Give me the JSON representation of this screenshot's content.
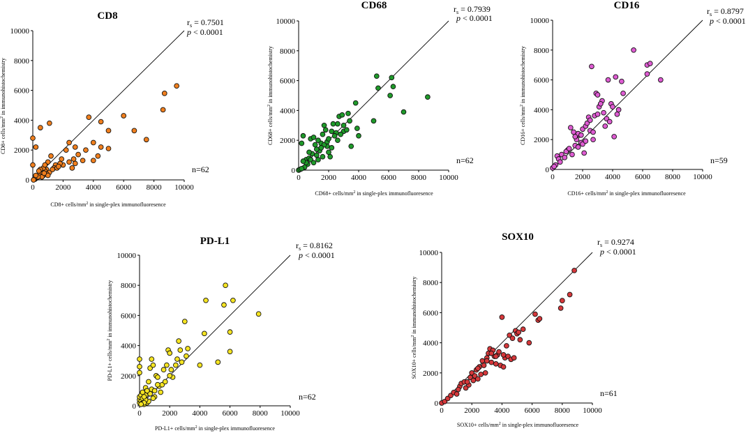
{
  "chart_data": [
    {
      "id": "cd8",
      "type": "scatter",
      "title": "CD8",
      "xlabel_pre": "CD8+ cells/mm",
      "xlabel_post": " in single-plex immunofluoresence",
      "ylabel_pre": "CD8+ cells/mm",
      "ylabel_post": " in immunohistochemistry",
      "xlim": [
        0,
        10000
      ],
      "ylim": [
        0,
        10000
      ],
      "xticks": [
        "0",
        "2000",
        "4000",
        "6000",
        "8000",
        "10000"
      ],
      "yticks": [
        "0",
        "2000",
        "4000",
        "6000",
        "8000",
        "10000"
      ],
      "rs_label": "r",
      "rs_sub": "s",
      "rs_value": " = 0.7501",
      "p_label": "p",
      "p_value": " < 0.0001",
      "n": "n=62",
      "color": "#f07f1e",
      "identity_line": true,
      "points": [
        [
          0,
          1000
        ],
        [
          0,
          2800
        ],
        [
          200,
          2200
        ],
        [
          500,
          3500
        ],
        [
          1100,
          3800
        ],
        [
          3700,
          4200
        ],
        [
          4500,
          3900
        ],
        [
          6000,
          4300
        ],
        [
          5000,
          3300
        ],
        [
          6700,
          3300
        ],
        [
          7500,
          2700
        ],
        [
          8600,
          4700
        ],
        [
          8700,
          5800
        ],
        [
          9500,
          6300
        ],
        [
          4000,
          2500
        ],
        [
          4300,
          1600
        ],
        [
          4000,
          1300
        ],
        [
          4500,
          2200
        ],
        [
          5000,
          2100
        ],
        [
          2800,
          2200
        ],
        [
          2400,
          2500
        ],
        [
          2200,
          2000
        ],
        [
          3000,
          1700
        ],
        [
          3500,
          2000
        ],
        [
          3300,
          1300
        ],
        [
          2700,
          1400
        ],
        [
          2400,
          1200
        ],
        [
          2600,
          800
        ],
        [
          2800,
          1100
        ],
        [
          1900,
          1400
        ],
        [
          2000,
          1000
        ],
        [
          1800,
          1100
        ],
        [
          1500,
          1000
        ],
        [
          1400,
          800
        ],
        [
          1200,
          1600
        ],
        [
          1000,
          1200
        ],
        [
          900,
          700
        ],
        [
          800,
          600
        ],
        [
          700,
          800
        ],
        [
          600,
          500
        ],
        [
          500,
          400
        ],
        [
          400,
          300
        ],
        [
          300,
          200
        ],
        [
          250,
          150
        ],
        [
          200,
          100
        ],
        [
          150,
          50
        ],
        [
          100,
          50
        ],
        [
          50,
          0
        ],
        [
          500,
          700
        ],
        [
          1100,
          500
        ],
        [
          1300,
          700
        ],
        [
          700,
          300
        ],
        [
          900,
          400
        ],
        [
          1000,
          300
        ],
        [
          600,
          200
        ],
        [
          800,
          1000
        ],
        [
          1600,
          800
        ],
        [
          1700,
          900
        ],
        [
          400,
          600
        ],
        [
          350,
          200
        ],
        [
          200,
          300
        ],
        [
          750,
          450
        ]
      ]
    },
    {
      "id": "cd68",
      "type": "scatter",
      "title": "CD68",
      "xlabel_pre": "CD68+ cells/mm",
      "xlabel_post": " in single-plex immunofluoresence",
      "ylabel_pre": "CD68+ cells/mm",
      "ylabel_post": " in immunohistochemistry",
      "xlim": [
        0,
        10000
      ],
      "ylim": [
        0,
        10000
      ],
      "xticks": [
        "0",
        "2000",
        "4000",
        "6000",
        "8000",
        "10000"
      ],
      "yticks": [
        "0",
        "2000",
        "4000",
        "6000",
        "8000",
        "10000"
      ],
      "rs_label": "r",
      "rs_sub": "s",
      "rs_value": " = 0.7939",
      "p_label": "p",
      "p_value": " < 0.0001",
      "n": "n=62",
      "color": "#1f9a2a",
      "identity_line": true,
      "points": [
        [
          0,
          0
        ],
        [
          100,
          50
        ],
        [
          200,
          1800
        ],
        [
          300,
          2300
        ],
        [
          500,
          700
        ],
        [
          600,
          400
        ],
        [
          700,
          800
        ],
        [
          400,
          200
        ],
        [
          800,
          2100
        ],
        [
          1000,
          2200
        ],
        [
          1200,
          1000
        ],
        [
          1300,
          700
        ],
        [
          1500,
          1800
        ],
        [
          1600,
          2400
        ],
        [
          1700,
          3000
        ],
        [
          1800,
          2700
        ],
        [
          1900,
          1600
        ],
        [
          2000,
          1200
        ],
        [
          2100,
          900
        ],
        [
          2200,
          1500
        ],
        [
          2300,
          3100
        ],
        [
          2500,
          2500
        ],
        [
          2700,
          3600
        ],
        [
          2900,
          3700
        ],
        [
          3000,
          2600
        ],
        [
          3300,
          3800
        ],
        [
          3500,
          1600
        ],
        [
          3800,
          4500
        ],
        [
          3900,
          2800
        ],
        [
          4000,
          2300
        ],
        [
          5000,
          3300
        ],
        [
          5200,
          6300
        ],
        [
          5300,
          5500
        ],
        [
          6100,
          5000
        ],
        [
          6200,
          6200
        ],
        [
          6300,
          5600
        ],
        [
          7000,
          3900
        ],
        [
          8600,
          4900
        ],
        [
          2800,
          2400
        ],
        [
          2600,
          2000
        ],
        [
          2400,
          2300
        ],
        [
          1400,
          1300
        ],
        [
          1100,
          1700
        ],
        [
          900,
          1100
        ],
        [
          1700,
          1700
        ],
        [
          1900,
          1900
        ],
        [
          3400,
          3300
        ],
        [
          3000,
          3000
        ],
        [
          2200,
          2600
        ],
        [
          1500,
          1500
        ],
        [
          500,
          500
        ],
        [
          800,
          700
        ],
        [
          1000,
          500
        ],
        [
          700,
          1200
        ],
        [
          200,
          100
        ],
        [
          300,
          600
        ],
        [
          1600,
          900
        ],
        [
          1300,
          2000
        ],
        [
          2000,
          2100
        ],
        [
          2600,
          3100
        ],
        [
          3200,
          2700
        ],
        [
          1200,
          1400
        ]
      ]
    },
    {
      "id": "cd16",
      "type": "scatter",
      "title": "CD16",
      "xlabel_pre": "CD16+ cells/mm",
      "xlabel_post": " in single-plex immunofluoresence",
      "ylabel_pre": "CD16+ cells/mm",
      "ylabel_post": " in immunohistochemistry",
      "xlim": [
        0,
        10000
      ],
      "ylim": [
        0,
        10000
      ],
      "xticks": [
        "0",
        "2000",
        "4000",
        "6000",
        "8000",
        "10000"
      ],
      "yticks": [
        "0",
        "2000",
        "4000",
        "6000",
        "8000",
        "10000"
      ],
      "rs_label": "r",
      "rs_sub": "s",
      "rs_value": " = 0.8797",
      "p_label": "p",
      "p_value": " < 0.0001",
      "n": "n=59",
      "color": "#de5bd2",
      "identity_line": true,
      "points": [
        [
          0,
          100
        ],
        [
          200,
          300
        ],
        [
          300,
          900
        ],
        [
          400,
          700
        ],
        [
          600,
          1000
        ],
        [
          1000,
          1300
        ],
        [
          1200,
          2800
        ],
        [
          1400,
          2500
        ],
        [
          1500,
          1600
        ],
        [
          1600,
          2000
        ],
        [
          1700,
          1500
        ],
        [
          1800,
          2300
        ],
        [
          1900,
          1800
        ],
        [
          2000,
          2700
        ],
        [
          2100,
          1100
        ],
        [
          2200,
          2900
        ],
        [
          2300,
          3100
        ],
        [
          2400,
          3500
        ],
        [
          2500,
          3300
        ],
        [
          2600,
          6900
        ],
        [
          2700,
          2000
        ],
        [
          2800,
          3600
        ],
        [
          2900,
          5100
        ],
        [
          3000,
          5000
        ],
        [
          3100,
          4200
        ],
        [
          3300,
          4600
        ],
        [
          3400,
          3800
        ],
        [
          3500,
          2900
        ],
        [
          3600,
          3400
        ],
        [
          3700,
          6000
        ],
        [
          3800,
          3200
        ],
        [
          3900,
          4400
        ],
        [
          4000,
          4200
        ],
        [
          4100,
          2200
        ],
        [
          4200,
          6200
        ],
        [
          4300,
          3700
        ],
        [
          4400,
          4000
        ],
        [
          4600,
          5900
        ],
        [
          4700,
          5100
        ],
        [
          5400,
          8000
        ],
        [
          6300,
          6400
        ],
        [
          6300,
          7000
        ],
        [
          6500,
          7100
        ],
        [
          7200,
          6000
        ],
        [
          1300,
          1000
        ],
        [
          1700,
          2400
        ],
        [
          2000,
          1700
        ],
        [
          2200,
          1900
        ],
        [
          900,
          1200
        ],
        [
          2500,
          2600
        ],
        [
          3200,
          4400
        ],
        [
          1100,
          1400
        ],
        [
          800,
          800
        ],
        [
          1500,
          2200
        ],
        [
          2700,
          2500
        ],
        [
          3000,
          3700
        ],
        [
          100,
          200
        ],
        [
          500,
          500
        ],
        [
          1900,
          2300
        ]
      ]
    },
    {
      "id": "pdl1",
      "type": "scatter",
      "title": "PD-L1",
      "xlabel_pre": "PD-L1+ cells/mm",
      "xlabel_post": " in single-plex immunofluoresence",
      "ylabel_pre": "PD-L1+ cells/mm",
      "ylabel_post": " in immunohistochemistry",
      "xlim": [
        0,
        10000
      ],
      "ylim": [
        0,
        10000
      ],
      "xticks": [
        "0",
        "2000",
        "4000",
        "6000",
        "8000",
        "10000"
      ],
      "yticks": [
        "0",
        "2000",
        "4000",
        "6000",
        "8000",
        "10000"
      ],
      "rs_label": "r",
      "rs_sub": "s",
      "rs_value": " = 0.8162",
      "p_label": "p",
      "p_value": " < 0.0001",
      "n": "n=62",
      "color": "#f5e422",
      "identity_line": true,
      "points": [
        [
          0,
          200
        ],
        [
          0,
          400
        ],
        [
          0,
          600
        ],
        [
          0,
          2600
        ],
        [
          0,
          3100
        ],
        [
          0,
          2200
        ],
        [
          100,
          700
        ],
        [
          100,
          300
        ],
        [
          200,
          500
        ],
        [
          300,
          100
        ],
        [
          400,
          1200
        ],
        [
          400,
          700
        ],
        [
          500,
          200
        ],
        [
          600,
          1600
        ],
        [
          700,
          2500
        ],
        [
          800,
          3100
        ],
        [
          800,
          1100
        ],
        [
          900,
          2700
        ],
        [
          1000,
          600
        ],
        [
          1100,
          2000
        ],
        [
          1200,
          1900
        ],
        [
          1300,
          1300
        ],
        [
          1500,
          1400
        ],
        [
          1700,
          1600
        ],
        [
          1800,
          2700
        ],
        [
          1900,
          3700
        ],
        [
          2000,
          3500
        ],
        [
          2100,
          2400
        ],
        [
          2200,
          1900
        ],
        [
          2400,
          2700
        ],
        [
          2500,
          3100
        ],
        [
          2600,
          4300
        ],
        [
          2700,
          3700
        ],
        [
          2800,
          2900
        ],
        [
          3000,
          5600
        ],
        [
          3100,
          3300
        ],
        [
          3200,
          3800
        ],
        [
          4000,
          2700
        ],
        [
          4300,
          4800
        ],
        [
          4400,
          7000
        ],
        [
          5200,
          2900
        ],
        [
          5600,
          6700
        ],
        [
          5700,
          8000
        ],
        [
          6000,
          4900
        ],
        [
          6000,
          3600
        ],
        [
          6200,
          7000
        ],
        [
          7900,
          6100
        ],
        [
          600,
          300
        ],
        [
          200,
          900
        ],
        [
          400,
          400
        ],
        [
          1000,
          1000
        ],
        [
          1400,
          900
        ],
        [
          300,
          600
        ],
        [
          150,
          150
        ],
        [
          700,
          800
        ],
        [
          1200,
          1400
        ],
        [
          2000,
          2000
        ],
        [
          1600,
          2400
        ],
        [
          900,
          500
        ],
        [
          500,
          1000
        ],
        [
          300,
          200
        ],
        [
          100,
          100
        ]
      ]
    },
    {
      "id": "sox10",
      "type": "scatter",
      "title": "SOX10",
      "xlabel_pre": "SOX10+ cells/mm",
      "xlabel_post": " in single-plex immunofluoresence",
      "ylabel_pre": "SOX10+ cells/mm",
      "ylabel_post": " in immunohistochemistry",
      "xlim": [
        0,
        10000
      ],
      "ylim": [
        0,
        10000
      ],
      "xticks": [
        "0",
        "2000",
        "4000",
        "6000",
        "8000",
        "10000"
      ],
      "yticks": [
        "0",
        "2000",
        "4000",
        "6000",
        "8000",
        "10000"
      ],
      "rs_label": "r",
      "rs_sub": "s",
      "rs_value": " = 0.9274",
      "p_label": "p",
      "p_value": " < 0.0001",
      "n": "n=61",
      "color": "#d6383b",
      "identity_line": true,
      "points": [
        [
          0,
          0
        ],
        [
          200,
          100
        ],
        [
          400,
          300
        ],
        [
          600,
          500
        ],
        [
          800,
          700
        ],
        [
          1000,
          600
        ],
        [
          1200,
          1100
        ],
        [
          1300,
          1300
        ],
        [
          1500,
          1400
        ],
        [
          1600,
          1000
        ],
        [
          1800,
          1200
        ],
        [
          1900,
          1700
        ],
        [
          2000,
          2000
        ],
        [
          2100,
          1500
        ],
        [
          2200,
          1800
        ],
        [
          2300,
          2200
        ],
        [
          2400,
          1600
        ],
        [
          2500,
          2400
        ],
        [
          2600,
          1900
        ],
        [
          2700,
          2800
        ],
        [
          2800,
          2500
        ],
        [
          2900,
          2000
        ],
        [
          3000,
          3000
        ],
        [
          3100,
          3300
        ],
        [
          3200,
          3600
        ],
        [
          3300,
          2700
        ],
        [
          3400,
          3500
        ],
        [
          3500,
          3100
        ],
        [
          3600,
          2600
        ],
        [
          3700,
          3200
        ],
        [
          3800,
          3400
        ],
        [
          3900,
          2500
        ],
        [
          4000,
          5700
        ],
        [
          4100,
          2400
        ],
        [
          4200,
          3000
        ],
        [
          4300,
          3800
        ],
        [
          4400,
          3100
        ],
        [
          4500,
          4500
        ],
        [
          4600,
          2900
        ],
        [
          4700,
          4300
        ],
        [
          4800,
          3000
        ],
        [
          4900,
          4800
        ],
        [
          5000,
          4600
        ],
        [
          5100,
          4700
        ],
        [
          5200,
          4200
        ],
        [
          5400,
          4900
        ],
        [
          5800,
          4000
        ],
        [
          6200,
          5900
        ],
        [
          6400,
          5500
        ],
        [
          6500,
          5600
        ],
        [
          7900,
          6300
        ],
        [
          8000,
          6800
        ],
        [
          8500,
          7200
        ],
        [
          8800,
          8800
        ],
        [
          1100,
          900
        ],
        [
          1700,
          1400
        ],
        [
          2400,
          2300
        ],
        [
          3000,
          2800
        ],
        [
          3300,
          3300
        ],
        [
          3600,
          3100
        ],
        [
          4100,
          3200
        ]
      ]
    }
  ]
}
